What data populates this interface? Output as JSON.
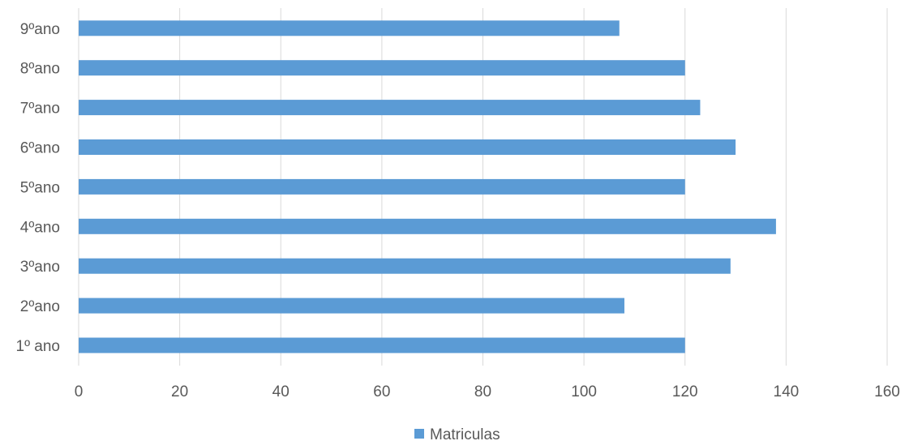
{
  "chart_data": {
    "type": "bar",
    "orientation": "horizontal",
    "categories": [
      "1º ano",
      "2ºano",
      "3ºano",
      "4ºano",
      "5ºano",
      "6ºano",
      "7ºano",
      "8ºano",
      "9ºano"
    ],
    "series": [
      {
        "name": "Matriculas",
        "color": "#5B9BD5",
        "values": [
          120,
          108,
          129,
          138,
          120,
          130,
          123,
          120,
          107
        ]
      }
    ],
    "xlim": [
      0,
      160
    ],
    "xticks": [
      0,
      20,
      40,
      60,
      80,
      100,
      120,
      140,
      160
    ],
    "grid": true,
    "legend_position": "bottom"
  }
}
